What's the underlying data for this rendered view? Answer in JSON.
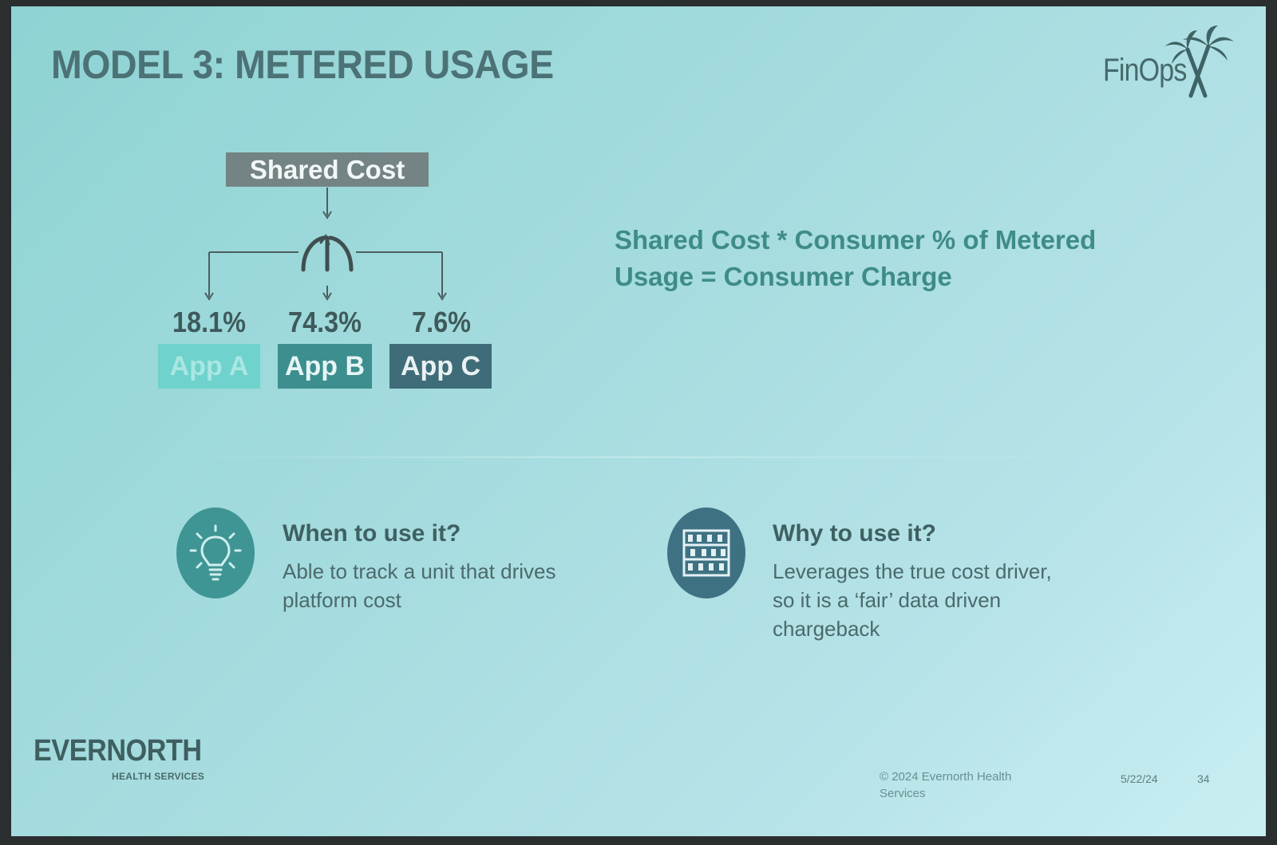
{
  "title": "MODEL 3: METERED USAGE",
  "logo": {
    "text": "FinOps",
    "mark": "palm-tree-x-icon"
  },
  "diagram": {
    "shared_cost": "Shared Cost",
    "split_icon": "split-arrows-icon",
    "apps": [
      {
        "percent": "18.1%",
        "label": "App A",
        "share": 18.1,
        "color": "#6fd2cc"
      },
      {
        "percent": "74.3%",
        "label": "App B",
        "share": 74.3,
        "color": "#3c8e8f"
      },
      {
        "percent": "7.6%",
        "label": "App C",
        "share": 7.6,
        "color": "#3f6c79"
      }
    ]
  },
  "formula": "Shared Cost * Consumer % of Metered Usage = Consumer Charge",
  "when": {
    "icon": "lightbulb-icon",
    "heading": "When to use it?",
    "body": "Able to track a unit that drives platform cost"
  },
  "why": {
    "icon": "abacus-icon",
    "heading": "Why to use it?",
    "body": "Leverages the true cost driver, so it is a ‘fair’ data driven chargeback"
  },
  "footer": {
    "brand": "EVERNORTH",
    "brand_sub": "HEALTH SERVICES",
    "copyright": "© 2024 Evernorth Health Services",
    "date": "5/22/24",
    "page": "34"
  }
}
